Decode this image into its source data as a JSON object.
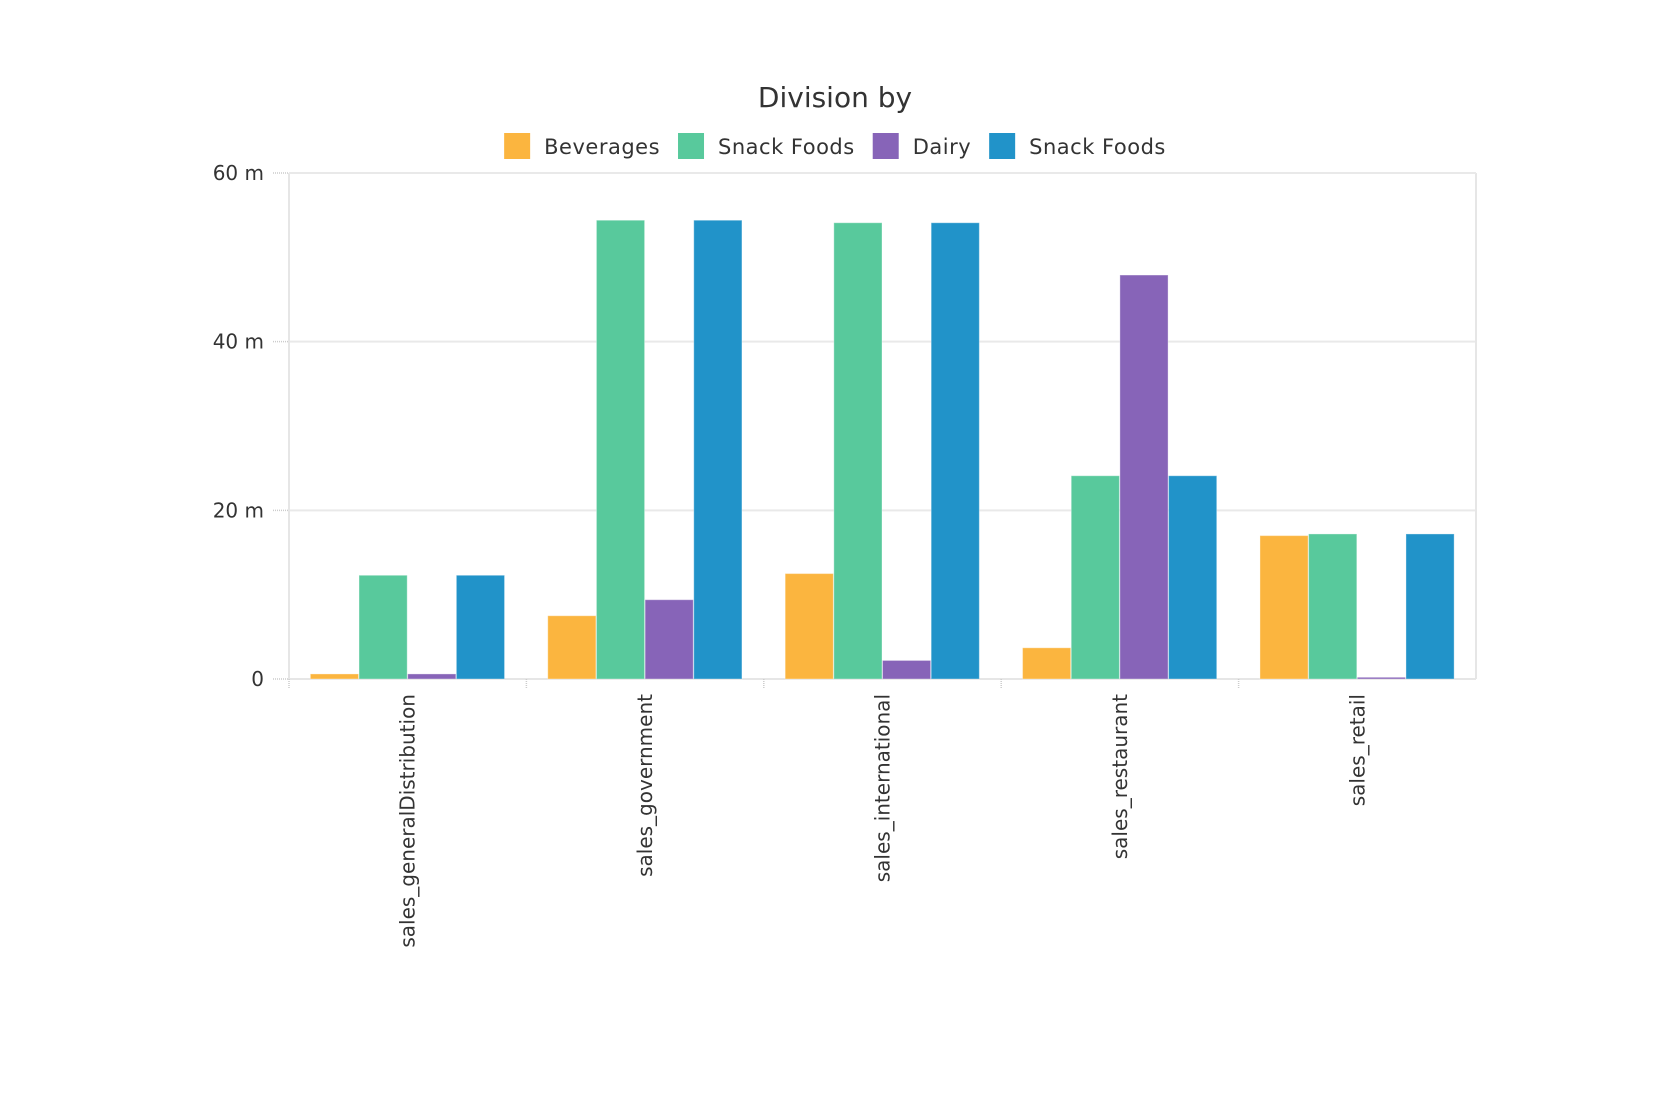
{
  "chart_data": {
    "type": "bar",
    "title": "Division by",
    "xlabel": "",
    "ylabel": "",
    "ylim": [
      0,
      60
    ],
    "y_ticks": [
      {
        "value": 0,
        "label": "0"
      },
      {
        "value": 20,
        "label": "20 m"
      },
      {
        "value": 40,
        "label": "40 m"
      },
      {
        "value": 60,
        "label": "60 m"
      }
    ],
    "grid": true,
    "legend_position": "top-center",
    "categories": [
      "sales_generalDistribution",
      "sales_government",
      "sales_international",
      "sales_restaurant",
      "sales_retail"
    ],
    "series": [
      {
        "name": "Beverages",
        "color": "#FBB53F",
        "values": [
          0.6,
          7.5,
          12.5,
          3.7,
          17.0
        ]
      },
      {
        "name": "Snack Foods",
        "color": "#58C99C",
        "values": [
          12.3,
          54.4,
          54.1,
          24.1,
          17.2
        ]
      },
      {
        "name": "Dairy",
        "color": "#8764B8",
        "values": [
          0.6,
          9.4,
          2.2,
          47.9,
          0.2
        ]
      },
      {
        "name": "Snack Foods",
        "color": "#2193C9",
        "values": [
          12.3,
          54.4,
          54.1,
          24.1,
          17.2
        ]
      }
    ]
  }
}
